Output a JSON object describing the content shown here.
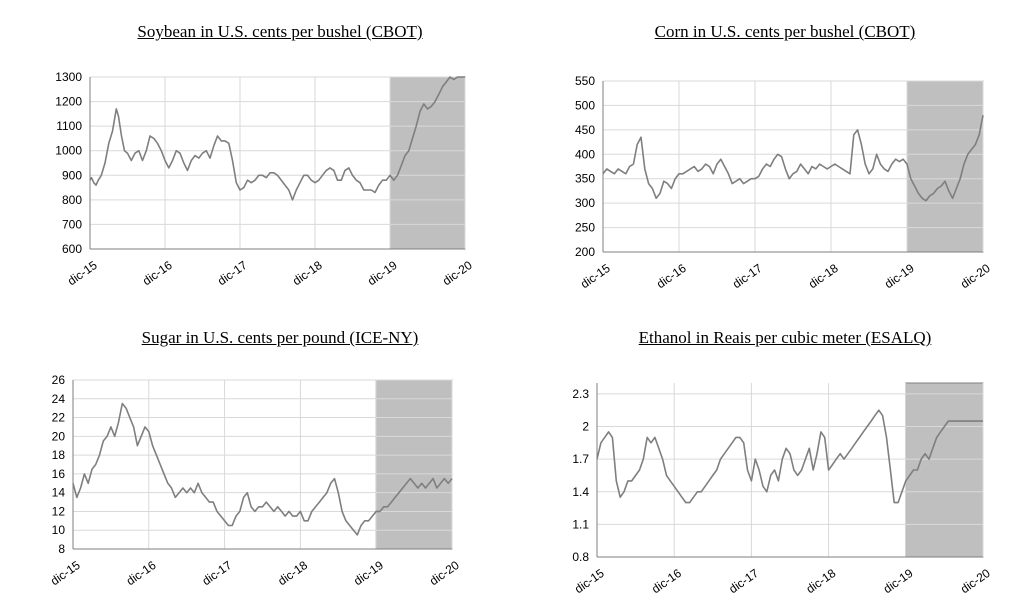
{
  "chart_data": [
    {
      "type": "line",
      "title": "Soybean in U.S. cents per bushel (CBOT)",
      "xlabel": "",
      "ylabel": "",
      "x_tick_labels": [
        "dic-15",
        "dic-16",
        "dic-17",
        "dic-18",
        "dic-19",
        "dic-20"
      ],
      "y_ticks": [
        600,
        700,
        800,
        900,
        1000,
        1100,
        1200,
        1300
      ],
      "ylim": [
        600,
        1300
      ],
      "grid": true,
      "shaded_period": [
        "dic-19",
        "dic-20"
      ],
      "series": [
        {
          "x": [
            0,
            0.02,
            0.05,
            0.08,
            0.11,
            0.15,
            0.2,
            0.25,
            0.3,
            0.35,
            0.38,
            0.42,
            0.46,
            0.5,
            0.55,
            0.6,
            0.65,
            0.7,
            0.75,
            0.8,
            0.85,
            0.9,
            0.95,
            1.0,
            1.05,
            1.1,
            1.15,
            1.2,
            1.25,
            1.3,
            1.35,
            1.4,
            1.45,
            1.5,
            1.55,
            1.6,
            1.65,
            1.7,
            1.75,
            1.8,
            1.85,
            1.9,
            1.95,
            2.0,
            2.05,
            2.1,
            2.15,
            2.2,
            2.25,
            2.3,
            2.35,
            2.4,
            2.45,
            2.5,
            2.55,
            2.6,
            2.65,
            2.7,
            2.75,
            2.8,
            2.85,
            2.9,
            2.95,
            3.0,
            3.05,
            3.1,
            3.15,
            3.2,
            3.25,
            3.3,
            3.35,
            3.4,
            3.45,
            3.5,
            3.55,
            3.6,
            3.65,
            3.7,
            3.75,
            3.8,
            3.85,
            3.9,
            3.95,
            4.0,
            4.05,
            4.1,
            4.15,
            4.2,
            4.25,
            4.3,
            4.35,
            4.4,
            4.45,
            4.5,
            4.55,
            4.6,
            4.65,
            4.7,
            4.75,
            4.8,
            4.85,
            4.9,
            4.95,
            5.0
          ],
          "values": [
            880,
            890,
            870,
            860,
            880,
            900,
            950,
            1030,
            1080,
            1170,
            1140,
            1060,
            1000,
            990,
            960,
            990,
            1000,
            960,
            1000,
            1060,
            1050,
            1030,
            1000,
            960,
            930,
            960,
            1000,
            990,
            950,
            920,
            960,
            980,
            970,
            990,
            1000,
            970,
            1020,
            1060,
            1040,
            1040,
            1030,
            960,
            870,
            840,
            850,
            880,
            870,
            880,
            900,
            900,
            890,
            910,
            910,
            900,
            880,
            860,
            840,
            800,
            840,
            870,
            900,
            900,
            880,
            870,
            880,
            900,
            920,
            930,
            920,
            880,
            880,
            920,
            930,
            900,
            880,
            870,
            840,
            840,
            840,
            830,
            860,
            880,
            880,
            900,
            880,
            900,
            940,
            980,
            1000,
            1050,
            1100,
            1160,
            1190,
            1170,
            1180,
            1200,
            1230,
            1260,
            1280,
            1300,
            1290,
            1300,
            1300,
            1300
          ]
        }
      ]
    },
    {
      "type": "line",
      "title": "Corn in U.S. cents per bushel (CBOT)",
      "xlabel": "",
      "ylabel": "",
      "x_tick_labels": [
        "dic-15",
        "dic-16",
        "dic-17",
        "dic-18",
        "dic-19",
        "dic-20"
      ],
      "y_ticks": [
        200,
        250,
        300,
        350,
        400,
        450,
        500,
        550
      ],
      "ylim": [
        200,
        550
      ],
      "grid": true,
      "shaded_period": [
        "dic-19",
        "dic-20"
      ],
      "series": [
        {
          "x": [
            0,
            0.05,
            0.1,
            0.15,
            0.2,
            0.25,
            0.3,
            0.35,
            0.4,
            0.45,
            0.5,
            0.55,
            0.6,
            0.65,
            0.7,
            0.75,
            0.8,
            0.85,
            0.9,
            0.95,
            1.0,
            1.05,
            1.1,
            1.15,
            1.2,
            1.25,
            1.3,
            1.35,
            1.4,
            1.45,
            1.5,
            1.55,
            1.6,
            1.65,
            1.7,
            1.75,
            1.8,
            1.85,
            1.9,
            1.95,
            2.0,
            2.05,
            2.1,
            2.15,
            2.2,
            2.25,
            2.3,
            2.35,
            2.4,
            2.45,
            2.5,
            2.55,
            2.6,
            2.65,
            2.7,
            2.75,
            2.8,
            2.85,
            2.9,
            2.95,
            3.0,
            3.05,
            3.1,
            3.15,
            3.2,
            3.25,
            3.3,
            3.35,
            3.4,
            3.45,
            3.5,
            3.55,
            3.6,
            3.65,
            3.7,
            3.75,
            3.8,
            3.85,
            3.9,
            3.95,
            4.0,
            4.05,
            4.1,
            4.15,
            4.2,
            4.25,
            4.3,
            4.35,
            4.4,
            4.45,
            4.5,
            4.55,
            4.6,
            4.65,
            4.7,
            4.75,
            4.8,
            4.85,
            4.9,
            4.95,
            5.0
          ],
          "values": [
            360,
            370,
            365,
            360,
            370,
            365,
            360,
            375,
            380,
            420,
            435,
            370,
            340,
            330,
            310,
            320,
            345,
            340,
            330,
            350,
            360,
            360,
            365,
            370,
            375,
            365,
            370,
            380,
            375,
            360,
            380,
            390,
            375,
            360,
            340,
            345,
            350,
            340,
            345,
            350,
            350,
            355,
            370,
            380,
            375,
            390,
            400,
            395,
            370,
            350,
            360,
            365,
            380,
            370,
            360,
            375,
            370,
            380,
            375,
            370,
            375,
            380,
            375,
            370,
            365,
            360,
            440,
            450,
            420,
            380,
            360,
            370,
            400,
            380,
            370,
            365,
            380,
            390,
            385,
            390,
            380,
            350,
            335,
            320,
            310,
            305,
            315,
            320,
            330,
            335,
            345,
            325,
            310,
            330,
            350,
            380,
            400,
            410,
            420,
            440,
            480
          ]
        }
      ]
    },
    {
      "type": "line",
      "title": "Sugar in U.S. cents per pound (ICE-NY)",
      "xlabel": "",
      "ylabel": "",
      "x_tick_labels": [
        "dic-15",
        "dic-16",
        "dic-17",
        "dic-18",
        "dic-19",
        "dic-20"
      ],
      "y_ticks": [
        8,
        10,
        12,
        14,
        16,
        18,
        20,
        22,
        24,
        26
      ],
      "ylim": [
        8,
        26
      ],
      "grid": true,
      "shaded_period": [
        "dic-19",
        "dic-20"
      ],
      "series": [
        {
          "x": [
            0,
            0.05,
            0.1,
            0.15,
            0.2,
            0.25,
            0.3,
            0.35,
            0.4,
            0.45,
            0.5,
            0.55,
            0.6,
            0.65,
            0.7,
            0.75,
            0.8,
            0.85,
            0.9,
            0.95,
            1.0,
            1.05,
            1.1,
            1.15,
            1.2,
            1.25,
            1.3,
            1.35,
            1.4,
            1.45,
            1.5,
            1.55,
            1.6,
            1.65,
            1.7,
            1.75,
            1.8,
            1.85,
            1.9,
            1.95,
            2.0,
            2.05,
            2.1,
            2.15,
            2.2,
            2.25,
            2.3,
            2.35,
            2.4,
            2.45,
            2.5,
            2.55,
            2.6,
            2.65,
            2.7,
            2.75,
            2.8,
            2.85,
            2.9,
            2.95,
            3.0,
            3.05,
            3.1,
            3.15,
            3.2,
            3.25,
            3.3,
            3.35,
            3.4,
            3.45,
            3.5,
            3.55,
            3.6,
            3.65,
            3.7,
            3.75,
            3.8,
            3.85,
            3.9,
            3.95,
            4.0,
            4.05,
            4.1,
            4.15,
            4.2,
            4.25,
            4.3,
            4.35,
            4.4,
            4.45,
            4.5,
            4.55,
            4.6,
            4.65,
            4.7,
            4.75,
            4.8,
            4.85,
            4.9,
            4.95,
            5.0
          ],
          "values": [
            15,
            13.5,
            14.5,
            16,
            15,
            16.5,
            17,
            18,
            19.5,
            20,
            21,
            20,
            21.5,
            23.5,
            23,
            22,
            21,
            19,
            20,
            21,
            20.5,
            19,
            18,
            17,
            16,
            15,
            14.5,
            13.5,
            14,
            14.5,
            14,
            14.5,
            14,
            15,
            14,
            13.5,
            13,
            13,
            12,
            11.5,
            11,
            10.5,
            10.5,
            11.5,
            12,
            13.5,
            14,
            12.5,
            12,
            12.5,
            12.5,
            13,
            12.5,
            12,
            12.5,
            12,
            11.5,
            12,
            11.5,
            11.5,
            12,
            11,
            11,
            12,
            12.5,
            13,
            13.5,
            14,
            15,
            15.5,
            14,
            12,
            11,
            10.5,
            10,
            9.5,
            10.5,
            11,
            11,
            11.5,
            12,
            12,
            12.5,
            12.5,
            13,
            13.5,
            14,
            14.5,
            15,
            15.5,
            15,
            14.5,
            15,
            14.5,
            15,
            15.5,
            14.5,
            15,
            15.5,
            15,
            15.5
          ]
        }
      ]
    },
    {
      "type": "line",
      "title": "Ethanol in Reais per cubic meter (ESALQ)",
      "xlabel": "",
      "ylabel": "",
      "x_tick_labels": [
        "dic-15",
        "dic-16",
        "dic-17",
        "dic-18",
        "dic-19",
        "dic-20"
      ],
      "y_ticks": [
        0.8,
        1.1,
        1.4,
        1.7,
        2,
        2.3
      ],
      "ylim": [
        0.8,
        2.4
      ],
      "grid": true,
      "shaded_period": [
        "dic-19",
        "dic-20"
      ],
      "series": [
        {
          "x": [
            0,
            0.05,
            0.1,
            0.15,
            0.2,
            0.25,
            0.3,
            0.35,
            0.4,
            0.45,
            0.5,
            0.55,
            0.6,
            0.65,
            0.7,
            0.75,
            0.8,
            0.85,
            0.9,
            0.95,
            1.0,
            1.05,
            1.1,
            1.15,
            1.2,
            1.25,
            1.3,
            1.35,
            1.4,
            1.45,
            1.5,
            1.55,
            1.6,
            1.65,
            1.7,
            1.75,
            1.8,
            1.85,
            1.9,
            1.95,
            2.0,
            2.05,
            2.1,
            2.15,
            2.2,
            2.25,
            2.3,
            2.35,
            2.4,
            2.45,
            2.5,
            2.55,
            2.6,
            2.65,
            2.7,
            2.75,
            2.8,
            2.85,
            2.9,
            2.95,
            3.0,
            3.05,
            3.1,
            3.15,
            3.2,
            3.25,
            3.3,
            3.35,
            3.4,
            3.45,
            3.5,
            3.55,
            3.6,
            3.65,
            3.7,
            3.75,
            3.8,
            3.85,
            3.9,
            3.95,
            4.0,
            4.05,
            4.1,
            4.15,
            4.2,
            4.25,
            4.3,
            4.35,
            4.4,
            4.45,
            4.5,
            4.55,
            4.6,
            4.65,
            4.7,
            4.75,
            4.8,
            4.85,
            4.9,
            4.95,
            5.0
          ],
          "values": [
            1.7,
            1.85,
            1.9,
            1.95,
            1.9,
            1.5,
            1.35,
            1.4,
            1.5,
            1.5,
            1.55,
            1.6,
            1.7,
            1.9,
            1.85,
            1.9,
            1.8,
            1.7,
            1.55,
            1.5,
            1.45,
            1.4,
            1.35,
            1.3,
            1.3,
            1.35,
            1.4,
            1.4,
            1.45,
            1.5,
            1.55,
            1.6,
            1.7,
            1.75,
            1.8,
            1.85,
            1.9,
            1.9,
            1.85,
            1.6,
            1.5,
            1.7,
            1.6,
            1.45,
            1.4,
            1.55,
            1.6,
            1.5,
            1.7,
            1.8,
            1.75,
            1.6,
            1.55,
            1.6,
            1.7,
            1.8,
            1.6,
            1.75,
            1.95,
            1.9,
            1.6,
            1.65,
            1.7,
            1.75,
            1.7,
            1.75,
            1.8,
            1.85,
            1.9,
            1.95,
            2.0,
            2.05,
            2.1,
            2.15,
            2.1,
            1.9,
            1.6,
            1.3,
            1.3,
            1.4,
            1.5,
            1.55,
            1.6,
            1.6,
            1.7,
            1.75,
            1.7,
            1.8,
            1.9,
            1.95,
            2.0,
            2.05,
            2.05,
            2.05,
            2.05,
            2.05,
            2.05,
            2.05,
            2.05,
            2.05,
            2.05
          ]
        }
      ]
    }
  ]
}
